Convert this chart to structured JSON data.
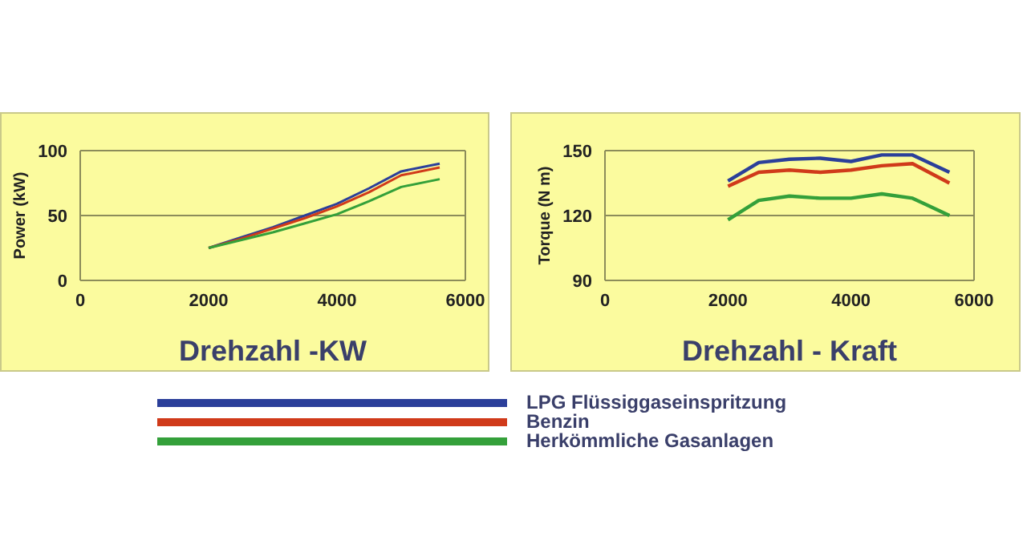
{
  "chart_data": [
    {
      "type": "line",
      "xlabel": "Drehzahl -KW",
      "ylabel": "Power (kW)",
      "x": [
        2000,
        2500,
        3000,
        3500,
        4000,
        4500,
        5000,
        5600
      ],
      "xlim": [
        0,
        6000
      ],
      "xticks": [
        0,
        2000,
        4000,
        6000
      ],
      "ylim": [
        0,
        100
      ],
      "yticks": [
        0,
        50,
        100
      ],
      "ref_lines": [
        {
          "axis": "y",
          "value": 50,
          "color": "#8c8c5a"
        }
      ],
      "legend": "bottom",
      "series": [
        {
          "name": "LPG Flüssiggaseinspritzung",
          "color": "#2b3f9a",
          "values": [
            25,
            33,
            41,
            50,
            59,
            71,
            84,
            90
          ]
        },
        {
          "name": "Benzin",
          "color": "#d03a1a",
          "values": [
            25,
            32,
            40,
            48,
            57,
            68,
            81,
            87
          ]
        },
        {
          "name": "Herkömmliche Gasanlagen",
          "color": "#34a03a",
          "values": [
            25,
            31,
            37,
            44,
            51,
            61,
            72,
            78
          ]
        }
      ]
    },
    {
      "type": "line",
      "xlabel": "Drehzahl - Kraft",
      "ylabel": "Torque (N m)",
      "x": [
        2000,
        2500,
        3000,
        3500,
        4000,
        4500,
        5000,
        5600
      ],
      "xlim": [
        0,
        6000
      ],
      "xticks": [
        0,
        2000,
        4000,
        6000
      ],
      "ylim": [
        90,
        150
      ],
      "yticks": [
        90,
        120,
        150
      ],
      "ref_lines": [
        {
          "axis": "y",
          "value": 120,
          "color": "#8c8c5a"
        }
      ],
      "series": [
        {
          "color": "#2b3f9a",
          "values": [
            136,
            144.5,
            146,
            146.5,
            145,
            148,
            148,
            140
          ]
        },
        {
          "color": "#d03a1a",
          "values": [
            133.5,
            140,
            141,
            140,
            141,
            143,
            144,
            135
          ]
        },
        {
          "color": "#34a03a",
          "values": [
            118,
            127,
            129,
            128,
            128,
            130,
            128,
            120
          ]
        }
      ]
    }
  ]
}
